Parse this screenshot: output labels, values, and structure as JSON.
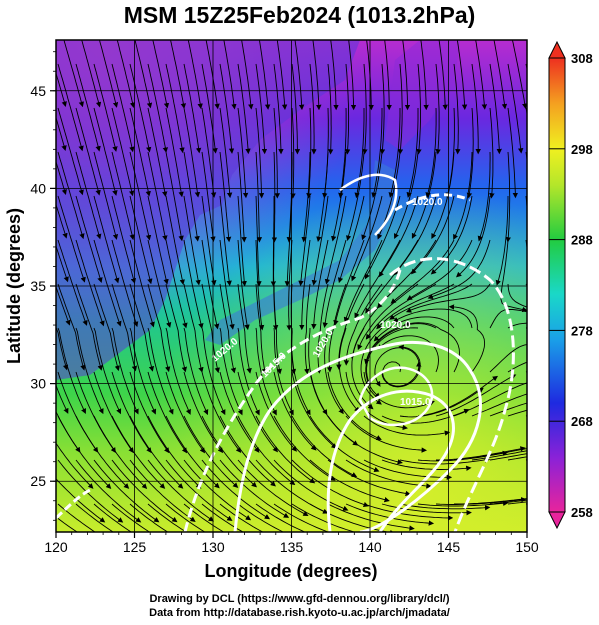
{
  "title": "MSM 15Z25Feb2024 (1013.2hPa)",
  "axes": {
    "xlabel": "Longitude (degrees)",
    "ylabel": "Latitude  (degrees)",
    "xlim": [
      120,
      150
    ],
    "ylim": [
      22.4,
      47.6
    ],
    "xticks": [
      120,
      125,
      130,
      135,
      140,
      145,
      150
    ],
    "yticks": [
      25,
      30,
      35,
      40,
      45
    ]
  },
  "colorbar": {
    "min": 258,
    "max": 308,
    "tick_labels": [
      "308",
      "298",
      "288",
      "278",
      "268",
      "258"
    ]
  },
  "contours": [
    {
      "label": "1020.0"
    },
    {
      "label": "1020.0"
    },
    {
      "label": "1015.0"
    },
    {
      "label": "1020.0"
    },
    {
      "label": "1015.0"
    },
    {
      "label": "1020.0"
    }
  ],
  "credit": {
    "line1": "Drawing by DCL (https://www.gfd-dennou.org/library/dcl/)",
    "line2": "Data from http://database.rish.kyoto-u.ac.jp/arch/jmadata/"
  },
  "colors": {
    "land": "#7a7a7a",
    "contour": "#ffffff",
    "streamline": "#000000"
  }
}
